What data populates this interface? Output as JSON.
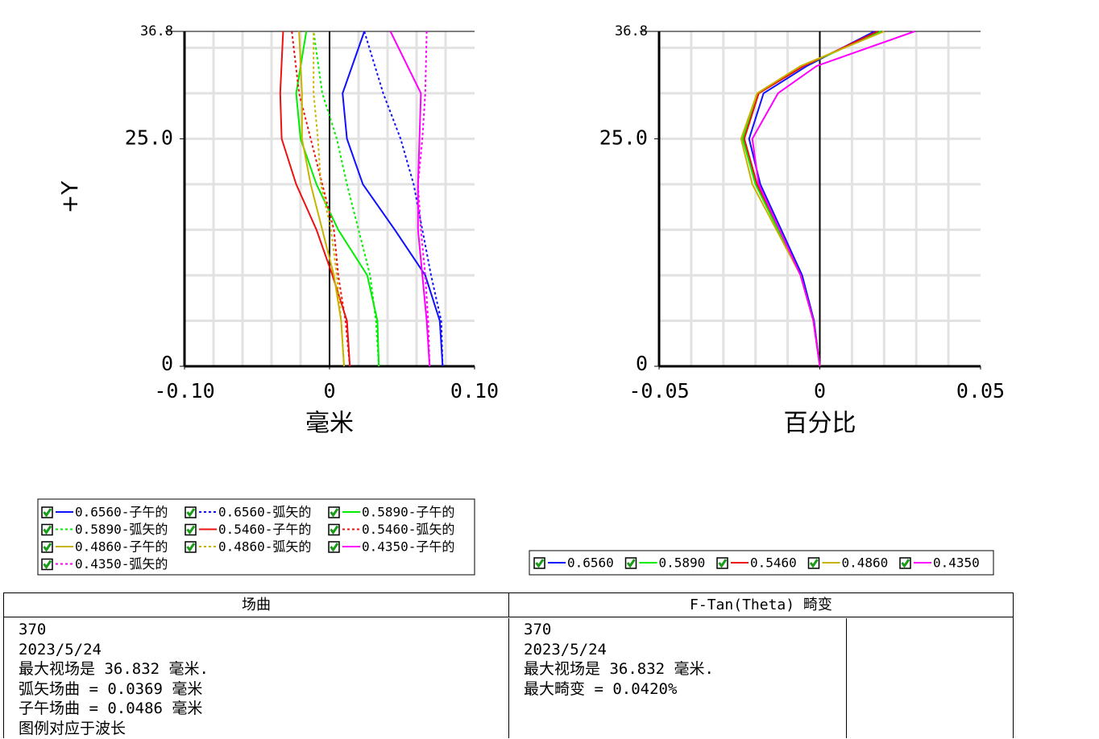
{
  "chart_data": [
    {
      "type": "line",
      "xlabel": "毫米",
      "ylabel": "+Y",
      "xlim": [
        -0.1,
        0.1
      ],
      "ylim": [
        0,
        36.8
      ],
      "xticks": [
        {
          "value": -0.1,
          "label": "-0.10"
        },
        0,
        {
          "value": 0.1,
          "label": "0.10"
        }
      ],
      "yticks": [
        0,
        {
          "value": 25,
          "label": "25.0"
        },
        36.8
      ],
      "xgrid": [
        -0.08,
        -0.06,
        -0.04,
        -0.02,
        0.02,
        0.04,
        0.06,
        0.08
      ],
      "ygrid": [
        5,
        10,
        15,
        20,
        25,
        30,
        35
      ],
      "y": [
        0,
        5,
        10,
        15,
        20,
        25,
        30,
        36.8
      ],
      "series": [
        {
          "name": "0.6560-子午的",
          "color": "#1010ff",
          "dashed": false,
          "values": [
            0.078,
            0.076,
            0.066,
            0.045,
            0.023,
            0.012,
            0.009,
            0.024
          ]
        },
        {
          "name": "0.6560-弧矢的",
          "color": "#1010ff",
          "dashed": true,
          "values": [
            0.078,
            0.077,
            0.07,
            0.064,
            0.058,
            0.049,
            0.037,
            0.024
          ]
        },
        {
          "name": "0.5890-子午的",
          "color": "#00ee00",
          "dashed": false,
          "values": [
            0.034,
            0.033,
            0.026,
            0.006,
            -0.009,
            -0.02,
            -0.023,
            -0.016
          ]
        },
        {
          "name": "0.5890-弧矢的",
          "color": "#00ee00",
          "dashed": true,
          "values": [
            0.034,
            0.032,
            0.028,
            0.02,
            0.012,
            0.005,
            -0.005,
            -0.011
          ]
        },
        {
          "name": "0.5460-子午的",
          "color": "#ee1111",
          "dashed": false,
          "values": [
            0.014,
            0.012,
            0.002,
            -0.009,
            -0.023,
            -0.033,
            -0.034,
            -0.032
          ]
        },
        {
          "name": "0.5460-弧矢的",
          "color": "#ee1111",
          "dashed": true,
          "values": [
            0.014,
            0.011,
            0.006,
            0.003,
            -0.005,
            -0.013,
            -0.021,
            -0.026
          ]
        },
        {
          "name": "0.4860-子午的",
          "color": "#c8b400",
          "dashed": false,
          "values": [
            0.01,
            0.008,
            0.003,
            -0.005,
            -0.013,
            -0.019,
            -0.019,
            -0.021
          ]
        },
        {
          "name": "0.4860-弧矢的",
          "color": "#c8b400",
          "dashed": true,
          "values": [
            0.01,
            0.008,
            0.005,
            0.001,
            -0.006,
            -0.008,
            -0.011,
            -0.011
          ]
        },
        {
          "name": "0.4350-子午的",
          "color": "#ff00ff",
          "dashed": false,
          "values": [
            0.069,
            0.067,
            0.064,
            0.061,
            0.061,
            0.062,
            0.063,
            0.042
          ]
        },
        {
          "name": "0.4350-弧矢的",
          "color": "#ff00ff",
          "dashed": true,
          "values": [
            0.069,
            0.068,
            0.066,
            0.063,
            0.061,
            0.064,
            0.066,
            0.067
          ]
        }
      ]
    },
    {
      "type": "line",
      "xlabel": "百分比",
      "xlim": [
        -0.05,
        0.05
      ],
      "ylim": [
        0,
        36.8
      ],
      "xticks": [
        {
          "value": -0.05,
          "label": "-0.05"
        },
        0,
        {
          "value": 0.05,
          "label": "0.05"
        }
      ],
      "yticks": [
        0,
        {
          "value": 25,
          "label": "25.0"
        },
        36.8
      ],
      "xgrid": [
        -0.04,
        -0.03,
        -0.02,
        -0.01,
        0.01,
        0.02,
        0.03,
        0.04
      ],
      "ygrid": [
        5,
        10,
        15,
        20,
        25,
        30,
        35
      ],
      "y": [
        0,
        5,
        10,
        15,
        20,
        25,
        30,
        33,
        36.8
      ],
      "series": [
        {
          "name": "0.6560",
          "color": "#1010ff",
          "dashed": false,
          "values": [
            0,
            -0.0018,
            -0.0055,
            -0.012,
            -0.0185,
            -0.022,
            -0.0175,
            -0.004,
            0.017
          ]
        },
        {
          "name": "0.5890",
          "color": "#00ee00",
          "dashed": false,
          "values": [
            0,
            -0.002,
            -0.006,
            -0.013,
            -0.02,
            -0.024,
            -0.019,
            -0.005,
            0.019
          ]
        },
        {
          "name": "0.5460",
          "color": "#ee1111",
          "dashed": false,
          "values": [
            0,
            -0.002,
            -0.006,
            -0.0125,
            -0.0195,
            -0.0235,
            -0.019,
            -0.005,
            0.018
          ]
        },
        {
          "name": "0.4860",
          "color": "#c8b400",
          "dashed": false,
          "values": [
            0,
            -0.002,
            -0.006,
            -0.0135,
            -0.021,
            -0.0245,
            -0.0195,
            -0.006,
            0.02
          ]
        },
        {
          "name": "0.4350",
          "color": "#ff00ff",
          "dashed": false,
          "values": [
            0,
            -0.002,
            -0.006,
            -0.0125,
            -0.019,
            -0.021,
            -0.013,
            -0.001,
            0.0295
          ]
        }
      ]
    }
  ],
  "table": {
    "headers": [
      "场曲",
      "F-Tan(Theta) 畸变"
    ],
    "cells": [
      [
        "370",
        "2023/5/24",
        "最大视场是 36.832 毫米.",
        "弧矢场曲 = 0.0369 毫米",
        "子午场曲 = 0.0486 毫米",
        "图例对应于波长"
      ],
      [
        "370",
        "2023/5/24",
        "最大视场是 36.832 毫米.",
        "最大畸变 = 0.0420%"
      ]
    ]
  }
}
